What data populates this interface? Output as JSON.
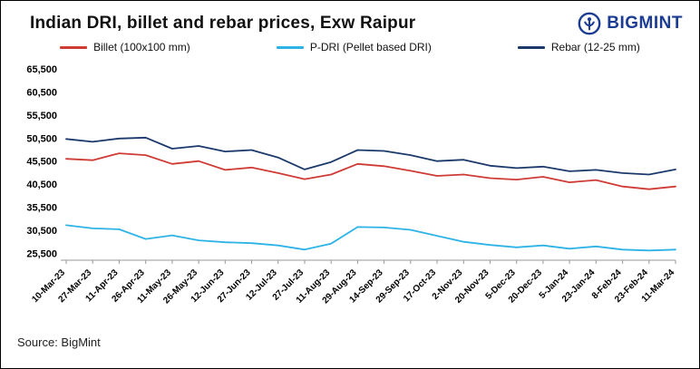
{
  "header": {
    "logo_text": "BIGMINT"
  },
  "footer": {
    "source": "Source: BigMint"
  },
  "colors": {
    "billet_red": "#cf3b35",
    "pdri_cyan": "#2eb3e6",
    "rebar_navy": "#1b3a6b",
    "logo_blue": "#1c3c94",
    "axis_gray": "#999999"
  },
  "chart_data": {
    "type": "line",
    "title": "Indian DRI, billet and rebar prices, Exw Raipur",
    "xlabel": "",
    "ylabel": "",
    "grid": false,
    "legend_position": "top",
    "ylim": [
      24000,
      66500
    ],
    "yticks": [
      25500,
      30500,
      35500,
      40500,
      45500,
      50500,
      55500,
      60500,
      65500
    ],
    "categories": [
      "10-Mar-23",
      "27-Mar-23",
      "11-Apr-23",
      "26-Apr-23",
      "11-May-23",
      "26-May-23",
      "12-Jun-23",
      "27-Jun-23",
      "12-Jul-23",
      "27-Jul-23",
      "11-Aug-23",
      "29-Aug-23",
      "14-Sep-23",
      "29-Sep-23",
      "17-Oct-23",
      "2-Nov-23",
      "20-Nov-23",
      "5-Dec-23",
      "20-Dec-23",
      "5-Jan-24",
      "23-Jan-24",
      "8-Feb-24",
      "23-Feb-24",
      "11-Mar-24"
    ],
    "series": [
      {
        "name": "Billet (100x100 mm)",
        "color": "#cf3b35",
        "values": [
          46000,
          45700,
          47200,
          46800,
          44900,
          45500,
          43600,
          44100,
          42900,
          41600,
          42600,
          44900,
          44400,
          43400,
          42300,
          42600,
          41800,
          41500,
          42100,
          40900,
          41400,
          40000,
          39400,
          40000
        ]
      },
      {
        "name": "P-DRI (Pellet based DRI)",
        "color": "#2eb3e6",
        "values": [
          31600,
          30900,
          30700,
          28600,
          29400,
          28300,
          27900,
          27700,
          27200,
          26300,
          27600,
          31200,
          31100,
          30600,
          29300,
          28000,
          27300,
          26800,
          27200,
          26500,
          27000,
          26300,
          26100,
          26300
        ]
      },
      {
        "name": "Rebar (12-25 mm)",
        "color": "#1b3a6b",
        "values": [
          50300,
          49700,
          50400,
          50600,
          48200,
          48800,
          47600,
          47900,
          46300,
          43700,
          45300,
          47900,
          47700,
          46800,
          45500,
          45800,
          44500,
          44000,
          44300,
          43300,
          43600,
          42900,
          42600,
          43700
        ]
      }
    ]
  }
}
